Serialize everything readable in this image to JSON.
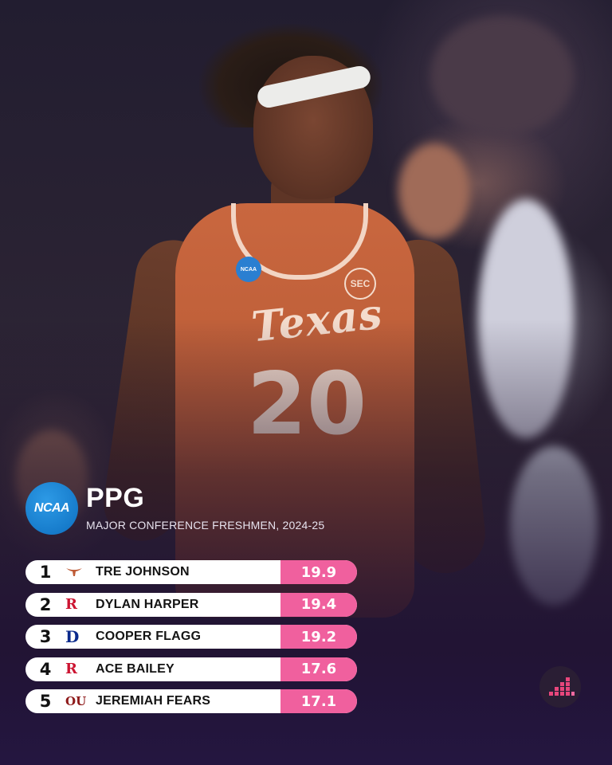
{
  "header": {
    "title": "PPG",
    "subtitle": "MAJOR CONFERENCE FRESHMEN, 2024-25",
    "logo_text": "NCAA"
  },
  "photo": {
    "jersey_text": "Texas",
    "jersey_number": "20",
    "patch_ncaa": "NCAA",
    "patch_sec": "SEC"
  },
  "rankings": [
    {
      "rank": "1",
      "team_icon": "longhorn-icon",
      "name": "TRE JOHNSON",
      "value": "19.9"
    },
    {
      "rank": "2",
      "team_icon": "rutgers-r-icon",
      "name": "DYLAN HARPER",
      "value": "19.4"
    },
    {
      "rank": "3",
      "team_icon": "duke-d-icon",
      "name": "COOPER FLAGG",
      "value": "19.2"
    },
    {
      "rank": "4",
      "team_icon": "rutgers-r-icon",
      "name": "ACE BAILEY",
      "value": "17.6"
    },
    {
      "rank": "5",
      "team_icon": "oklahoma-ou-icon",
      "name": "JEREMIAH FEARS",
      "value": "17.1"
    }
  ],
  "colors": {
    "value_pill": "#f0609e",
    "ncaa_blue": "#1a82d4",
    "texas_orange": "#bf5c37"
  },
  "brand_icon": "bar-chart-brand-icon"
}
